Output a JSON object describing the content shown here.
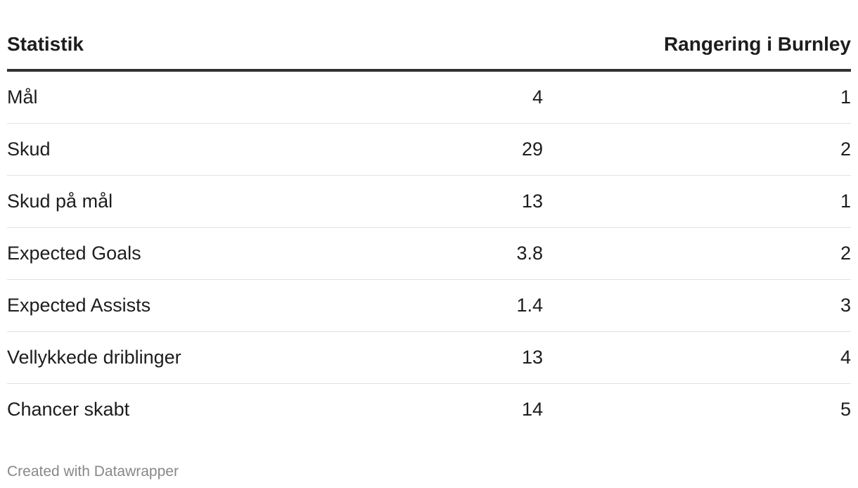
{
  "header": {
    "stat": "Statistik",
    "rank": "Rangering i Burnley"
  },
  "table": {
    "rows": [
      [
        "Mål",
        4,
        1
      ],
      [
        "Skud",
        29,
        2
      ],
      [
        "Skud på mål",
        13,
        1
      ],
      [
        "Expected Goals",
        3.8,
        2
      ],
      [
        "Expected Assists",
        1.4,
        3
      ],
      [
        "Vellykkede driblinger",
        13,
        4
      ],
      [
        "Chancer skabt",
        14,
        5
      ]
    ]
  },
  "footer": "Created with Datawrapper"
}
